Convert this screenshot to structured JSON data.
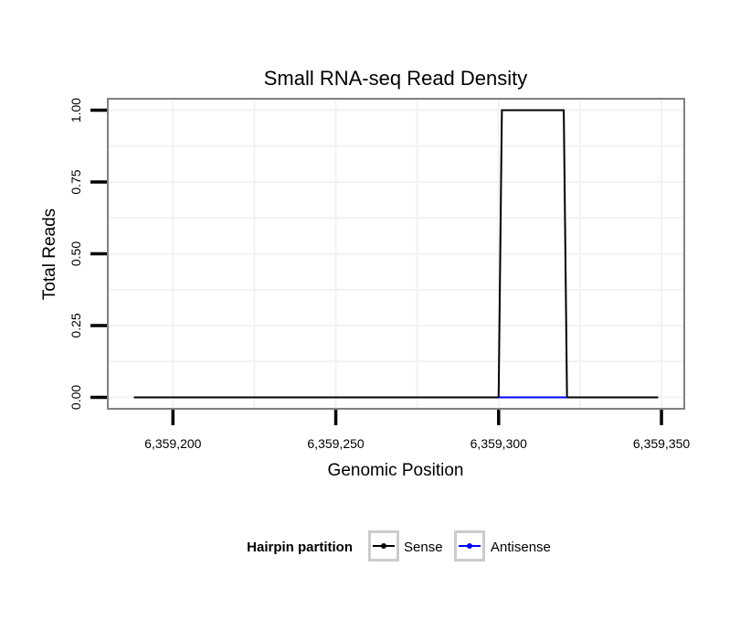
{
  "chart_data": {
    "type": "line",
    "title": "Small RNA-seq Read Density",
    "xlabel": "Genomic Position",
    "ylabel": "Total Reads",
    "xlim": [
      6359180,
      6359357
    ],
    "ylim": [
      -0.04,
      1.04
    ],
    "x_ticks": [
      6359200,
      6359250,
      6359300,
      6359350
    ],
    "x_tick_labels": [
      "6,359,200",
      "6,359,250",
      "6,359,300",
      "6,359,350"
    ],
    "y_ticks": [
      0,
      0.25,
      0.5,
      0.75,
      1
    ],
    "y_tick_labels": [
      "0.00",
      "0.25",
      "0.50",
      "0.75",
      "1.00"
    ],
    "grid": true,
    "series": [
      {
        "name": "Sense",
        "color": "#000000",
        "x": [
          6359188,
          6359300,
          6359301,
          6359320,
          6359321,
          6359349
        ],
        "y": [
          0,
          0,
          1,
          1,
          0,
          0
        ]
      },
      {
        "name": "Antisense",
        "color": "#0000ff",
        "x": [
          6359300,
          6359321
        ],
        "y": [
          0,
          0
        ]
      }
    ],
    "legend": {
      "title": "Hairpin partition",
      "position": "bottom",
      "entries": [
        "Sense",
        "Antisense"
      ]
    }
  }
}
